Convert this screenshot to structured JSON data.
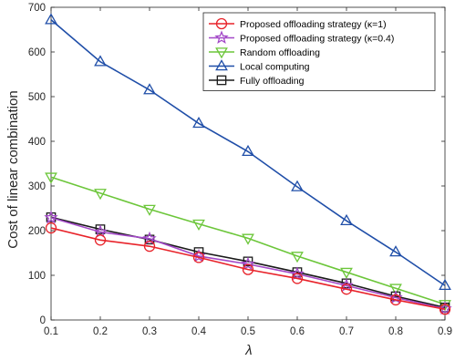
{
  "chart_data": {
    "type": "line",
    "title": "",
    "xlabel": "λ",
    "ylabel": "Cost of linear combination",
    "x": [
      0.1,
      0.2,
      0.3,
      0.4,
      0.5,
      0.6,
      0.7,
      0.8,
      0.9
    ],
    "xlim": [
      0.1,
      0.9
    ],
    "ylim": [
      0,
      700
    ],
    "xticks": [
      "0.1",
      "0.2",
      "0.3",
      "0.4",
      "0.5",
      "0.6",
      "0.7",
      "0.8",
      "0.9"
    ],
    "yticks": [
      "0",
      "100",
      "200",
      "300",
      "400",
      "500",
      "600",
      "700"
    ],
    "grid": false,
    "legend_position": "top-right",
    "series": [
      {
        "name": "Proposed offloading strategy (κ=1)",
        "marker": "circle",
        "color": "#e8232a",
        "values": [
          206,
          179,
          165,
          140,
          113,
          93,
          69,
          45,
          24
        ]
      },
      {
        "name": "Proposed offloading strategy (κ=0.4)",
        "marker": "star",
        "color": "#a349c8",
        "values": [
          229,
          197,
          182,
          143,
          125,
          103,
          77,
          50,
          25
        ]
      },
      {
        "name": "Random offloading",
        "marker": "triangle-down",
        "color": "#6cc63a",
        "values": [
          320,
          284,
          248,
          215,
          183,
          143,
          107,
          71,
          35
        ]
      },
      {
        "name": "Local computing",
        "marker": "triangle-up",
        "color": "#1f4ea8",
        "values": [
          672,
          578,
          515,
          440,
          377,
          298,
          222,
          152,
          77
        ]
      },
      {
        "name": "Fully offloading",
        "marker": "square",
        "color": "#1a1a1a",
        "values": [
          230,
          203,
          180,
          152,
          131,
          107,
          82,
          53,
          28
        ]
      }
    ]
  }
}
